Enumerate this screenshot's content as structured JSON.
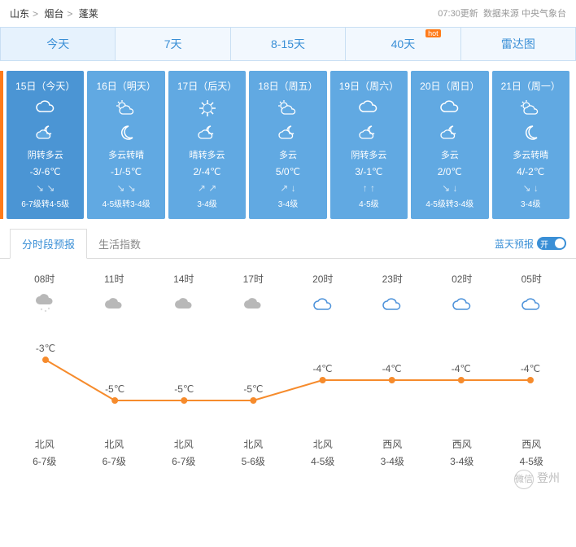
{
  "breadcrumb": {
    "a": "山东",
    "b": "烟台",
    "c": "蓬莱"
  },
  "update": {
    "time": "07:30更新",
    "source": "数据来源 中央气象台"
  },
  "tabs": [
    {
      "label": "今天",
      "active": true
    },
    {
      "label": "7天"
    },
    {
      "label": "8-15天"
    },
    {
      "label": "40天",
      "hot": "hot"
    },
    {
      "label": "雷达图"
    }
  ],
  "days": [
    {
      "date": "15日（今天）",
      "desc": "阴转多云",
      "temp": "-3/-6℃",
      "arrows": "↘ ↘",
      "wind": "6-7级转4-5级",
      "active": true,
      "icons": [
        "overcast",
        "cloudy-moon"
      ]
    },
    {
      "date": "16日（明天）",
      "desc": "多云转晴",
      "temp": "-1/-5℃",
      "arrows": "↘ ↘",
      "wind": "4-5级转3-4级",
      "icons": [
        "partly-cloudy",
        "moon"
      ]
    },
    {
      "date": "17日（后天）",
      "desc": "晴转多云",
      "temp": "2/-4℃",
      "arrows": "↗ ↗",
      "wind": "3-4级",
      "icons": [
        "sun",
        "cloudy-moon"
      ]
    },
    {
      "date": "18日（周五）",
      "desc": "多云",
      "temp": "5/0℃",
      "arrows": "↗ ↓",
      "wind": "3-4级",
      "icons": [
        "partly-cloudy",
        "cloudy-moon"
      ]
    },
    {
      "date": "19日（周六）",
      "desc": "阴转多云",
      "temp": "3/-1℃",
      "arrows": "↑ ↑",
      "wind": "4-5级",
      "icons": [
        "overcast",
        "cloudy-moon"
      ]
    },
    {
      "date": "20日（周日）",
      "desc": "多云",
      "temp": "2/0℃",
      "arrows": "↘ ↓",
      "wind": "4-5级转3-4级",
      "icons": [
        "overcast",
        "cloudy-moon"
      ]
    },
    {
      "date": "21日（周一）",
      "desc": "多云转晴",
      "temp": "4/-2℃",
      "arrows": "↘ ↓",
      "wind": "3-4级",
      "icons": [
        "partly-cloudy",
        "moon"
      ]
    }
  ],
  "subtabs": {
    "a": "分时段预报",
    "b": "生活指数",
    "toggle": "蓝天预报",
    "switch": "开"
  },
  "hourly": {
    "times": [
      "08时",
      "11时",
      "14时",
      "17时",
      "20时",
      "23时",
      "02时",
      "05时"
    ],
    "icons": [
      "snow",
      "overcast",
      "overcast",
      "overcast",
      "cloud-outline",
      "cloud-outline",
      "cloud-outline",
      "cloud-outline"
    ],
    "temps": [
      -3,
      -5,
      -5,
      -5,
      -4,
      -4,
      -4,
      -4
    ],
    "labels": [
      "-3℃",
      "-5℃",
      "-5℃",
      "-5℃",
      "-4℃",
      "-4℃",
      "-4℃",
      "-4℃"
    ],
    "winds": [
      "北风",
      "北风",
      "北风",
      "北风",
      "北风",
      "西风",
      "西风",
      "西风"
    ],
    "levels": [
      "6-7级",
      "6-7级",
      "6-7级",
      "5-6级",
      "4-5级",
      "3-4级",
      "3-4级",
      "4-5级"
    ],
    "line_color": "#f68b2c",
    "point_color": "#f68b2c"
  },
  "watermark": {
    "circle": "微信",
    "text": "登州"
  }
}
